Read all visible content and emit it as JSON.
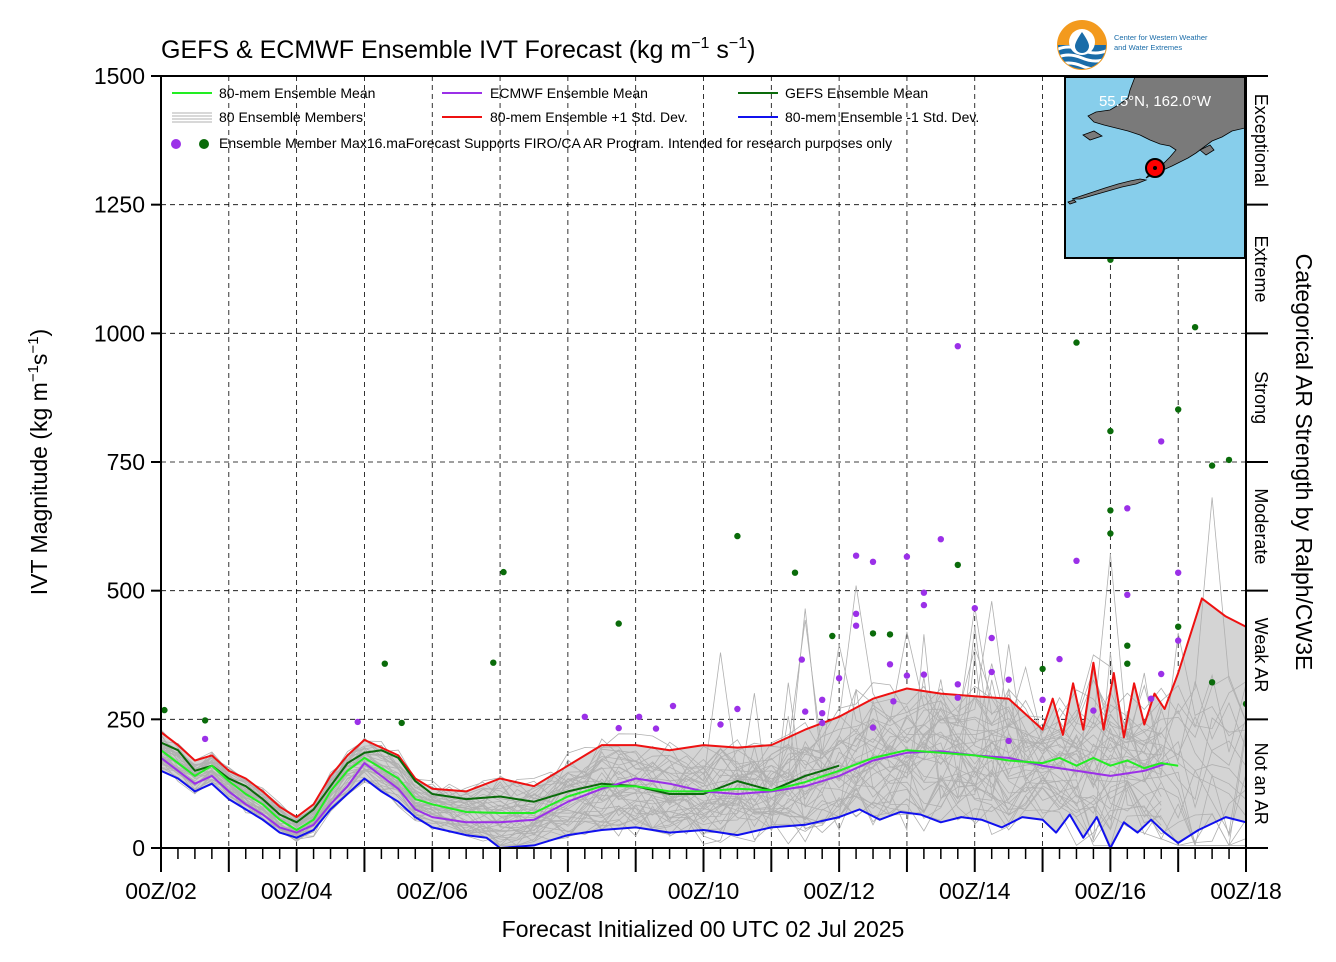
{
  "chart_data": {
    "type": "line",
    "title_main": "GEFS & ECMWF Ensemble IVT Forecast (kg m",
    "title_exp1": "−1",
    "title_mid": " s",
    "title_exp2": "−1",
    "title_close": ")",
    "xlabel": "Forecast Initialized 00 UTC 02 Jul 2025",
    "ylabel_main": "IVT Magnitude (kg m",
    "ylabel_exp1": "−1",
    "ylabel_mid": "s",
    "ylabel_exp2": "−1",
    "ylabel_close": ")",
    "right_label": "Categorical AR Strength by Ralph/CW3E",
    "xlim_days": [
      2,
      18
    ],
    "ylim": [
      0,
      1500
    ],
    "grid": true,
    "legend_position": "top-left",
    "x_tick_labels": [
      "00Z/02",
      "00Z/04",
      "00Z/06",
      "00Z/08",
      "00Z/10",
      "00Z/12",
      "00Z/14",
      "00Z/16",
      "00Z/18"
    ],
    "x_tick_days": [
      2,
      4,
      6,
      8,
      10,
      12,
      14,
      16,
      18
    ],
    "y_ticks": [
      0,
      250,
      500,
      750,
      1000,
      1250,
      1500
    ],
    "categories": [
      {
        "label": "Not an AR",
        "from": 0,
        "to": 250
      },
      {
        "label": "Weak AR",
        "from": 250,
        "to": 500
      },
      {
        "label": "Moderate",
        "from": 500,
        "to": 750
      },
      {
        "label": "Strong",
        "from": 750,
        "to": 1000
      },
      {
        "label": "Extreme",
        "from": 1000,
        "to": 1250
      },
      {
        "label": "Exceptional",
        "from": 1250,
        "to": 1500
      }
    ],
    "legend": {
      "mean80": "80-mem Ensemble Mean",
      "members": "80 Ensemble Members",
      "dots": "Ensemble Member Max",
      "ecmwf": "ECMWF Ensemble Mean",
      "plus1": "80-mem Ensemble +1 Std. Dev.",
      "gefs": "GEFS Ensemble Mean",
      "minus1": "80-mem Ensemble -1 Std. Dev.",
      "note": "16.maForecast Supports FIRO/CA AR Program. Intended for research purposes only"
    },
    "inset": {
      "location_label": "55.5°N, 162.0°W",
      "lat": 55.5,
      "lon": -162.0
    },
    "logo_text": [
      "Center for Western Weather",
      "and Water Extremes"
    ],
    "colors": {
      "mean80": "#22ee22",
      "ecmwf": "#9b30e8",
      "gefs": "#0a6b0a",
      "plus1": "#ee1111",
      "minus1": "#1111ee",
      "members": "#b0b0b0",
      "fill": "#d4d4d4",
      "inset_ocean": "#87ceeb",
      "inset_land": "#7a7a7a",
      "marker": "#ff0000",
      "logo_orange": "#f39a1e",
      "logo_blue": "#1a6ca8"
    },
    "series": [
      {
        "name": "80-mem Ensemble Mean",
        "key": "mean80",
        "x": [
          2,
          2.25,
          2.5,
          2.75,
          3,
          3.25,
          3.5,
          3.75,
          4,
          4.25,
          4.5,
          4.75,
          5,
          5.25,
          5.5,
          5.75,
          6,
          6.5,
          7,
          7.5,
          8,
          8.5,
          9,
          9.5,
          10,
          10.5,
          11,
          11.5,
          12,
          12.5,
          13,
          13.5,
          14,
          14.5,
          15,
          15.25,
          15.5,
          15.75,
          16,
          16.25,
          16.5,
          16.75,
          17
        ],
        "y": [
          190,
          165,
          140,
          160,
          130,
          105,
          85,
          55,
          35,
          55,
          110,
          150,
          175,
          155,
          135,
          95,
          85,
          70,
          68,
          68,
          100,
          120,
          120,
          110,
          110,
          115,
          112,
          128,
          150,
          175,
          190,
          185,
          180,
          170,
          165,
          175,
          160,
          175,
          160,
          170,
          155,
          165,
          160
        ]
      },
      {
        "name": "ECMWF Ensemble Mean",
        "key": "ecmwf",
        "x": [
          2,
          2.25,
          2.5,
          2.75,
          3,
          3.25,
          3.5,
          3.75,
          4,
          4.25,
          4.5,
          4.75,
          5,
          5.25,
          5.5,
          5.75,
          6,
          6.5,
          7,
          7.5,
          8,
          8.5,
          9,
          9.5,
          10,
          10.5,
          11,
          11.5,
          12,
          12.5,
          13,
          13.5,
          14,
          14.5,
          15,
          15.5,
          16,
          16.5,
          16.85
        ],
        "y": [
          175,
          150,
          125,
          140,
          110,
          85,
          65,
          40,
          30,
          45,
          85,
          120,
          165,
          140,
          115,
          75,
          60,
          50,
          50,
          55,
          90,
          115,
          135,
          125,
          110,
          105,
          110,
          120,
          140,
          170,
          185,
          188,
          180,
          175,
          160,
          150,
          140,
          150,
          165
        ]
      },
      {
        "name": "GEFS Ensemble Mean",
        "key": "gefs",
        "x": [
          2,
          2.25,
          2.5,
          2.75,
          3,
          3.25,
          3.5,
          3.75,
          4,
          4.25,
          4.5,
          4.75,
          5,
          5.25,
          5.5,
          5.75,
          6,
          6.5,
          7,
          7.5,
          8,
          8.5,
          9,
          9.5,
          10,
          10.5,
          11,
          11.5,
          12
        ],
        "y": [
          205,
          190,
          150,
          160,
          135,
          120,
          95,
          65,
          50,
          75,
          120,
          165,
          185,
          190,
          175,
          130,
          105,
          95,
          100,
          90,
          110,
          125,
          120,
          105,
          105,
          130,
          112,
          140,
          160
        ]
      },
      {
        "name": "80-mem Ensemble +1 Std. Dev.",
        "key": "plus1",
        "x": [
          2,
          2.25,
          2.5,
          2.75,
          3,
          3.25,
          3.5,
          3.75,
          4,
          4.25,
          4.5,
          4.75,
          5,
          5.25,
          5.5,
          5.75,
          6,
          6.5,
          7,
          7.5,
          8,
          8.5,
          9,
          9.5,
          10,
          10.5,
          11,
          11.5,
          12,
          12.5,
          13,
          13.5,
          14,
          14.5,
          15,
          15.15,
          15.3,
          15.45,
          15.6,
          15.75,
          15.9,
          16.05,
          16.2,
          16.35,
          16.5,
          16.65,
          16.8,
          17,
          17.35,
          17.7,
          18
        ],
        "y": [
          225,
          200,
          170,
          180,
          150,
          135,
          110,
          80,
          60,
          85,
          140,
          180,
          210,
          195,
          180,
          135,
          115,
          110,
          135,
          120,
          160,
          200,
          200,
          190,
          200,
          195,
          200,
          230,
          255,
          290,
          310,
          300,
          295,
          290,
          230,
          290,
          220,
          320,
          230,
          360,
          230,
          340,
          215,
          320,
          240,
          300,
          270,
          340,
          485,
          450,
          430
        ]
      },
      {
        "name": "80-mem Ensemble -1 Std. Dev.",
        "key": "minus1",
        "x": [
          2,
          2.25,
          2.5,
          2.75,
          3,
          3.25,
          3.5,
          3.75,
          4,
          4.25,
          4.5,
          4.75,
          5,
          5.25,
          5.5,
          5.75,
          6,
          6.5,
          6.8,
          7,
          7.5,
          8,
          8.5,
          9,
          9.5,
          10,
          10.5,
          11,
          11.5,
          12,
          12.3,
          12.6,
          12.9,
          13.2,
          13.5,
          13.8,
          14.1,
          14.4,
          14.7,
          15,
          15.2,
          15.4,
          15.6,
          15.8,
          16,
          16.2,
          16.4,
          16.6,
          16.8,
          17,
          17.3,
          17.7,
          18
        ],
        "y": [
          150,
          135,
          110,
          125,
          95,
          75,
          55,
          30,
          20,
          35,
          75,
          105,
          135,
          110,
          90,
          60,
          40,
          25,
          20,
          0,
          5,
          25,
          35,
          40,
          30,
          35,
          25,
          40,
          45,
          60,
          75,
          55,
          70,
          65,
          50,
          60,
          55,
          40,
          60,
          55,
          30,
          65,
          20,
          60,
          0,
          50,
          30,
          55,
          30,
          10,
          35,
          60,
          50
        ]
      }
    ],
    "member_max_dots": [
      {
        "x": 2.05,
        "y": 268,
        "model": "gefs"
      },
      {
        "x": 2.65,
        "y": 248,
        "model": "gefs"
      },
      {
        "x": 2.65,
        "y": 212,
        "model": "ecmwf"
      },
      {
        "x": 4.9,
        "y": 245,
        "model": "ecmwf"
      },
      {
        "x": 5.3,
        "y": 358,
        "model": "gefs"
      },
      {
        "x": 5.55,
        "y": 243,
        "model": "gefs"
      },
      {
        "x": 6.9,
        "y": 360,
        "model": "gefs"
      },
      {
        "x": 7.05,
        "y": 536,
        "model": "gefs"
      },
      {
        "x": 8.25,
        "y": 255,
        "model": "ecmwf"
      },
      {
        "x": 8.75,
        "y": 436,
        "model": "gefs"
      },
      {
        "x": 8.75,
        "y": 233,
        "model": "ecmwf"
      },
      {
        "x": 9.05,
        "y": 255,
        "model": "ecmwf"
      },
      {
        "x": 9.3,
        "y": 232,
        "model": "ecmwf"
      },
      {
        "x": 9.55,
        "y": 276,
        "model": "ecmwf"
      },
      {
        "x": 10.25,
        "y": 240,
        "model": "ecmwf"
      },
      {
        "x": 10.5,
        "y": 606,
        "model": "gefs"
      },
      {
        "x": 10.5,
        "y": 270,
        "model": "ecmwf"
      },
      {
        "x": 11.35,
        "y": 535,
        "model": "gefs"
      },
      {
        "x": 11.45,
        "y": 366,
        "model": "ecmwf"
      },
      {
        "x": 11.5,
        "y": 265,
        "model": "ecmwf"
      },
      {
        "x": 11.75,
        "y": 288,
        "model": "ecmwf"
      },
      {
        "x": 11.75,
        "y": 262,
        "model": "ecmwf"
      },
      {
        "x": 11.75,
        "y": 243,
        "model": "ecmwf"
      },
      {
        "x": 11.9,
        "y": 412,
        "model": "gefs"
      },
      {
        "x": 12.0,
        "y": 330,
        "model": "ecmwf"
      },
      {
        "x": 12.25,
        "y": 568,
        "model": "ecmwf"
      },
      {
        "x": 12.25,
        "y": 455,
        "model": "ecmwf"
      },
      {
        "x": 12.25,
        "y": 432,
        "model": "ecmwf"
      },
      {
        "x": 12.5,
        "y": 556,
        "model": "ecmwf"
      },
      {
        "x": 12.5,
        "y": 417,
        "model": "gefs"
      },
      {
        "x": 12.5,
        "y": 234,
        "model": "ecmwf"
      },
      {
        "x": 12.75,
        "y": 415,
        "model": "gefs"
      },
      {
        "x": 12.75,
        "y": 357,
        "model": "ecmwf"
      },
      {
        "x": 12.8,
        "y": 285,
        "model": "ecmwf"
      },
      {
        "x": 13.0,
        "y": 566,
        "model": "ecmwf"
      },
      {
        "x": 13.0,
        "y": 335,
        "model": "ecmwf"
      },
      {
        "x": 13.25,
        "y": 496,
        "model": "ecmwf"
      },
      {
        "x": 13.25,
        "y": 472,
        "model": "ecmwf"
      },
      {
        "x": 13.25,
        "y": 337,
        "model": "ecmwf"
      },
      {
        "x": 13.5,
        "y": 600,
        "model": "ecmwf"
      },
      {
        "x": 13.75,
        "y": 975,
        "model": "ecmwf"
      },
      {
        "x": 13.75,
        "y": 550,
        "model": "gefs"
      },
      {
        "x": 13.75,
        "y": 318,
        "model": "ecmwf"
      },
      {
        "x": 13.75,
        "y": 292,
        "model": "ecmwf"
      },
      {
        "x": 14.0,
        "y": 466,
        "model": "ecmwf"
      },
      {
        "x": 14.25,
        "y": 408,
        "model": "ecmwf"
      },
      {
        "x": 14.25,
        "y": 342,
        "model": "ecmwf"
      },
      {
        "x": 14.5,
        "y": 327,
        "model": "ecmwf"
      },
      {
        "x": 14.5,
        "y": 208,
        "model": "ecmwf"
      },
      {
        "x": 15.0,
        "y": 348,
        "model": "gefs"
      },
      {
        "x": 15.0,
        "y": 288,
        "model": "ecmwf"
      },
      {
        "x": 15.25,
        "y": 367,
        "model": "ecmwf"
      },
      {
        "x": 15.5,
        "y": 982,
        "model": "gefs"
      },
      {
        "x": 15.5,
        "y": 558,
        "model": "ecmwf"
      },
      {
        "x": 15.75,
        "y": 267,
        "model": "ecmwf"
      },
      {
        "x": 16.0,
        "y": 1143,
        "model": "gefs"
      },
      {
        "x": 16.0,
        "y": 810,
        "model": "gefs"
      },
      {
        "x": 16.0,
        "y": 656,
        "model": "gefs"
      },
      {
        "x": 16.0,
        "y": 611,
        "model": "gefs"
      },
      {
        "x": 16.25,
        "y": 660,
        "model": "ecmwf"
      },
      {
        "x": 16.25,
        "y": 492,
        "model": "ecmwf"
      },
      {
        "x": 16.25,
        "y": 393,
        "model": "gefs"
      },
      {
        "x": 16.25,
        "y": 358,
        "model": "gefs"
      },
      {
        "x": 16.6,
        "y": 290,
        "model": "ecmwf"
      },
      {
        "x": 16.75,
        "y": 790,
        "model": "ecmwf"
      },
      {
        "x": 16.75,
        "y": 338,
        "model": "ecmwf"
      },
      {
        "x": 17.0,
        "y": 852,
        "model": "gefs"
      },
      {
        "x": 17.0,
        "y": 535,
        "model": "ecmwf"
      },
      {
        "x": 17.0,
        "y": 430,
        "model": "gefs"
      },
      {
        "x": 17.0,
        "y": 403,
        "model": "ecmwf"
      },
      {
        "x": 17.25,
        "y": 1012,
        "model": "gefs"
      },
      {
        "x": 17.5,
        "y": 743,
        "model": "gefs"
      },
      {
        "x": 17.5,
        "y": 322,
        "model": "gefs"
      },
      {
        "x": 17.75,
        "y": 754,
        "model": "gefs"
      },
      {
        "x": 18.0,
        "y": 280,
        "model": "gefs"
      }
    ]
  }
}
